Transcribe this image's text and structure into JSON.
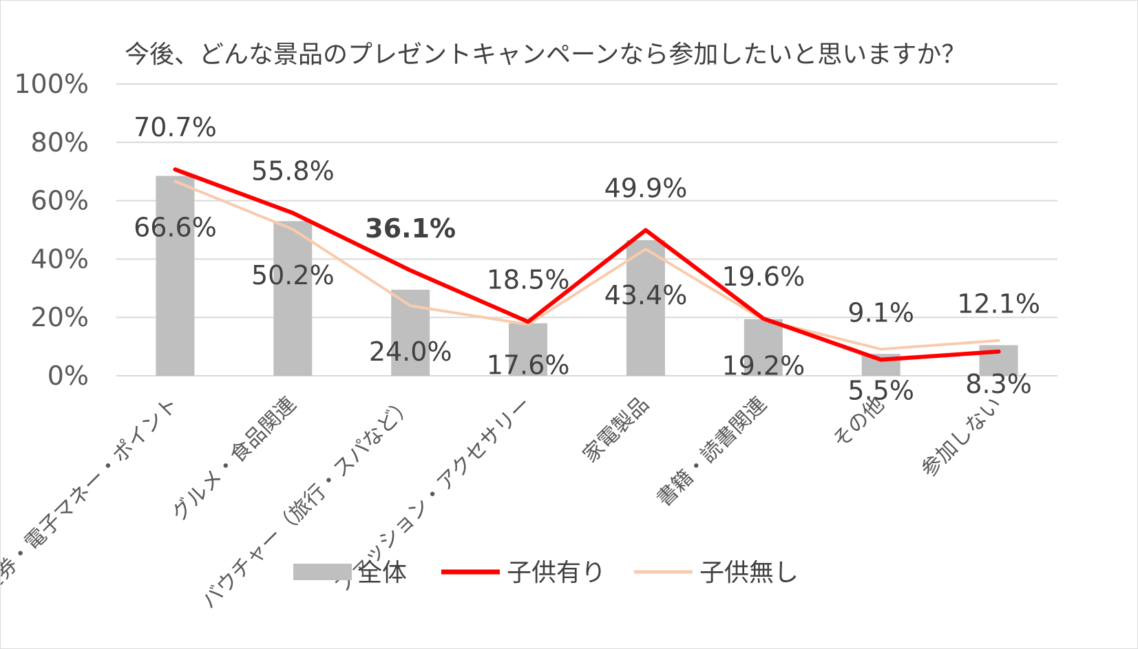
{
  "chart_data": {
    "type": "bar",
    "title": "今後、どんな景品のプレゼントキャンペーンなら参加したいと思いますか？",
    "categories": [
      "金券・電子マネー・ポイント",
      "グルメ・食品関連",
      "バウチャー（旅行・スパなど）",
      "ファッション・アクセサリー",
      "家電製品",
      "書籍・読書関連",
      "その他",
      "参加しない"
    ],
    "ylim": [
      0,
      100
    ],
    "yticks": [
      "0%",
      "20%",
      "40%",
      "60%",
      "80%",
      "100%"
    ],
    "grid": true,
    "legend_position": "bottom",
    "series": [
      {
        "name": "全体",
        "type": "bar",
        "color": "#bfbfbf",
        "values": [
          68.5,
          53.0,
          29.5,
          18.0,
          46.5,
          19.4,
          7.5,
          10.5
        ]
      },
      {
        "name": "子供有り",
        "type": "line",
        "color": "#ff0000",
        "values": [
          70.7,
          55.8,
          36.1,
          18.5,
          49.9,
          19.6,
          5.5,
          8.3
        ],
        "labels": [
          "70.7%",
          "55.8%",
          "36.1%",
          "18.5%",
          "49.9%",
          "19.6%",
          "5.5%",
          "8.3%"
        ]
      },
      {
        "name": "子供無し",
        "type": "line",
        "color": "#f8cbad",
        "values": [
          66.6,
          50.2,
          24.0,
          17.6,
          43.4,
          19.2,
          9.1,
          12.1
        ],
        "labels": [
          "66.6%",
          "50.2%",
          "24.0%",
          "17.6%",
          "43.4%",
          "19.2%",
          "9.1%",
          "12.1%"
        ]
      }
    ],
    "highlight_label_color": "#ff0000"
  }
}
